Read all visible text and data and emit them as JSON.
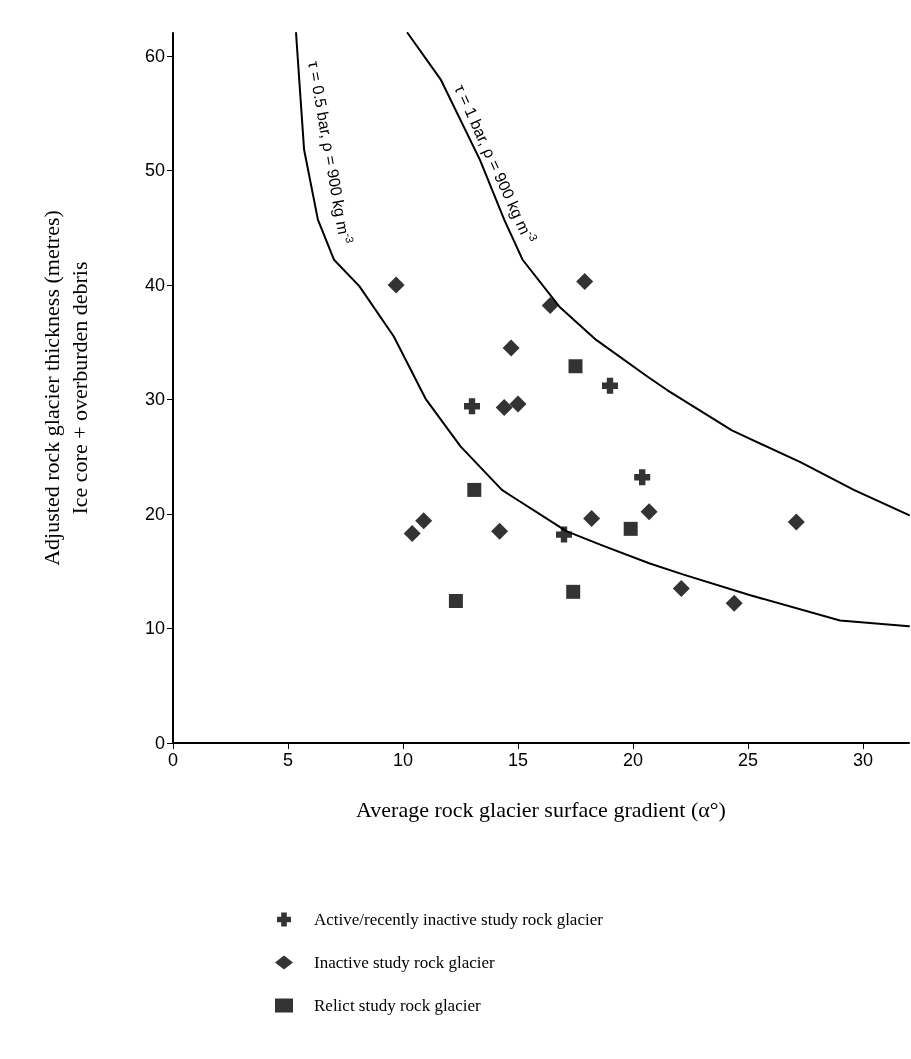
{
  "chart_data": {
    "type": "scatter",
    "xlabel": "Average rock glacier surface gradient (α°)",
    "ylabel": "Adjusted rock glacier thickness (metres)\nIce core + overburden debris",
    "xlim": [
      0,
      32
    ],
    "xticks": [
      0,
      5,
      10,
      15,
      20,
      25,
      30
    ],
    "ylim": [
      0,
      62
    ],
    "yticks": [
      0,
      10,
      20,
      30,
      40,
      50,
      60
    ],
    "legend": "bottom",
    "series": [
      {
        "name": "Active/recently inactive study rock glacier",
        "color": "#000000",
        "marker": "cross",
        "x": [
          13.0,
          19.0,
          20.4,
          17.0
        ],
        "values": [
          29.4,
          31.2,
          23.2,
          18.2
        ]
      },
      {
        "name": "Inactive study rock glacier",
        "color": "#000000",
        "marker": "diamond",
        "x": [
          9.7,
          17.9,
          16.4,
          14.7,
          14.4,
          15.0,
          10.9,
          10.4,
          14.2,
          18.2,
          20.7,
          27.1,
          22.1,
          24.4
        ],
        "values": [
          40.0,
          40.3,
          38.2,
          34.5,
          29.3,
          29.6,
          19.4,
          18.3,
          18.5,
          19.6,
          20.2,
          19.3,
          13.5,
          12.2
        ]
      },
      {
        "name": "Relict study rock glacier",
        "color": "#000000",
        "marker": "square",
        "x": [
          17.5,
          13.1,
          19.9,
          12.3,
          17.4
        ],
        "values": [
          32.9,
          22.1,
          18.7,
          12.4,
          13.2
        ]
      },
      {
        "name": "τ = 0.5 bar, ρ = 900 kg m$^{-3}$",
        "type": "line",
        "marker": "none",
        "color": "#000000",
        "x": [
          5.35,
          5.4,
          5.7,
          6.3,
          7.0,
          8.1,
          9.6,
          11.0,
          12.5,
          14.3,
          15.0,
          17.1,
          18.6,
          20.7,
          22.2,
          25.1,
          29.0,
          32.0
        ],
        "values": [
          62,
          60.5,
          51.8,
          45.7,
          42.2,
          39.9,
          35.5,
          30.0,
          25.9,
          22.1,
          21.2,
          18.5,
          17.3,
          15.7,
          14.7,
          12.9,
          10.7,
          10.2
        ]
      },
      {
        "name": "τ = 1 bar, ρ = 900 kg m$^{-3}$",
        "type": "line",
        "marker": "none",
        "color": "#000000",
        "x": [
          10.2,
          11.65,
          13.35,
          14.4,
          15.2,
          16.8,
          18.4,
          20.7,
          21.5,
          24.3,
          27.3,
          29.6,
          32.0
        ],
        "values": [
          62,
          57.9,
          50.9,
          45.7,
          42.2,
          38.1,
          35.2,
          31.9,
          30.8,
          27.3,
          24.5,
          22.1,
          19.9
        ]
      }
    ]
  }
}
